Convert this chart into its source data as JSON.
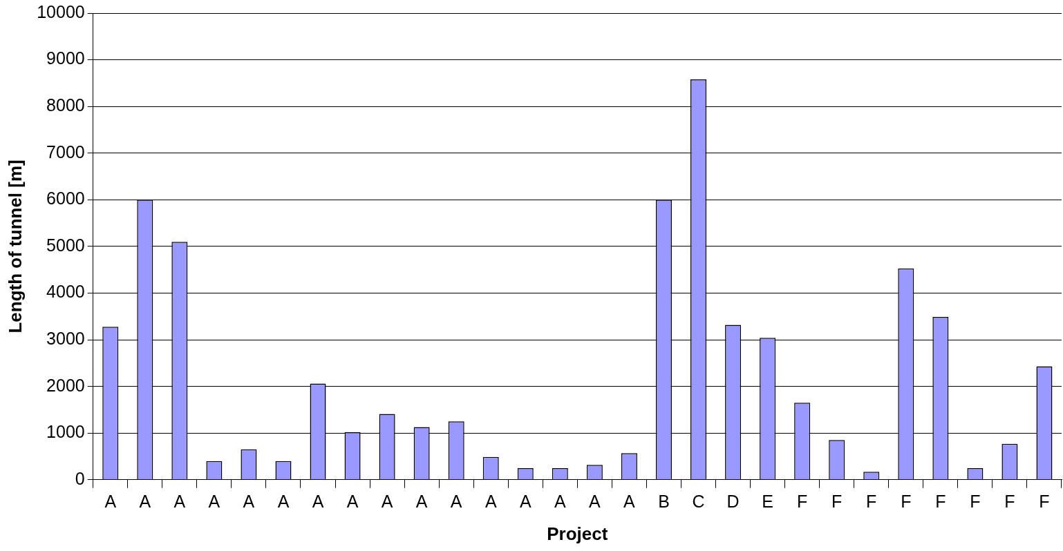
{
  "chart_data": {
    "type": "bar",
    "xlabel": "Project",
    "ylabel": "Length of tunnel [m]",
    "categories": [
      "A",
      "A",
      "A",
      "A",
      "A",
      "A",
      "A",
      "A",
      "A",
      "A",
      "A",
      "A",
      "A",
      "A",
      "A",
      "A",
      "B",
      "C",
      "D",
      "E",
      "F",
      "F",
      "F",
      "F",
      "F",
      "F",
      "F",
      "F"
    ],
    "values": [
      3280,
      6000,
      5100,
      400,
      650,
      400,
      2060,
      1020,
      1410,
      1130,
      1250,
      490,
      250,
      250,
      320,
      570,
      6000,
      8580,
      3320,
      3040,
      1650,
      850,
      170,
      4530,
      3490,
      250,
      770,
      2430
    ],
    "color": "#9999ff",
    "ylim": [
      0,
      10000
    ],
    "yticks": [
      0,
      1000,
      2000,
      3000,
      4000,
      5000,
      6000,
      7000,
      8000,
      9000,
      10000
    ],
    "grid": "y",
    "legend": false
  }
}
